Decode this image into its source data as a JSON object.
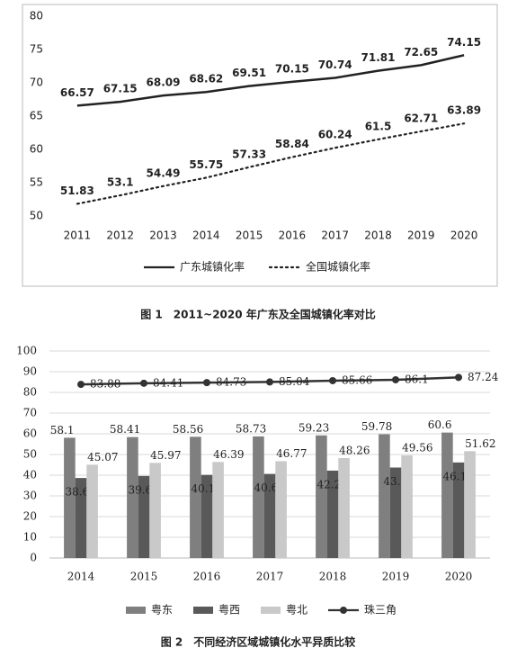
{
  "chart_data": [
    {
      "type": "line",
      "title": "图 1　2011~2020 年广东及全国城镇化率对比",
      "categories": [
        "2011",
        "2012",
        "2013",
        "2014",
        "2015",
        "2016",
        "2017",
        "2018",
        "2019",
        "2020"
      ],
      "series": [
        {
          "name": "广东城镇化率",
          "color": "#222222",
          "line_style": "solid",
          "values": [
            66.57,
            67.15,
            68.09,
            68.62,
            69.51,
            70.15,
            70.74,
            71.81,
            72.65,
            74.15
          ]
        },
        {
          "name": "全国城镇化率",
          "color": "#222222",
          "line_style": "dotted",
          "values": [
            51.83,
            53.1,
            54.49,
            55.75,
            57.33,
            58.84,
            60.24,
            61.5,
            62.71,
            63.89
          ]
        }
      ],
      "ylim": [
        50,
        80
      ],
      "yticks": [
        50,
        55,
        60,
        65,
        70,
        75,
        80
      ],
      "grid": false
    },
    {
      "type": "bar",
      "title": "图 2　不同经济区域城镇化水平异质比较",
      "categories": [
        "2014",
        "2015",
        "2016",
        "2017",
        "2018",
        "2019",
        "2020"
      ],
      "series": [
        {
          "name": "粤东",
          "type": "bar",
          "color": "#7f7f7f",
          "values": [
            58.1,
            58.41,
            58.56,
            58.73,
            59.23,
            59.78,
            60.6
          ]
        },
        {
          "name": "粤西",
          "type": "bar",
          "color": "#595959",
          "values": [
            38.64,
            39.62,
            40.14,
            40.61,
            42.21,
            43.7,
            46.15
          ]
        },
        {
          "name": "粤北",
          "type": "bar",
          "color": "#c9c9c9",
          "values": [
            45.07,
            45.97,
            46.39,
            46.77,
            48.26,
            49.56,
            51.62
          ]
        },
        {
          "name": "珠三角",
          "type": "line",
          "color": "#333333",
          "values": [
            83.88,
            84.41,
            84.73,
            85.04,
            85.66,
            86.1,
            87.24
          ]
        }
      ],
      "ylim": [
        0,
        100
      ],
      "yticks": [
        0,
        10,
        20,
        30,
        40,
        50,
        60,
        70,
        80,
        90,
        100
      ],
      "grid": true
    }
  ]
}
